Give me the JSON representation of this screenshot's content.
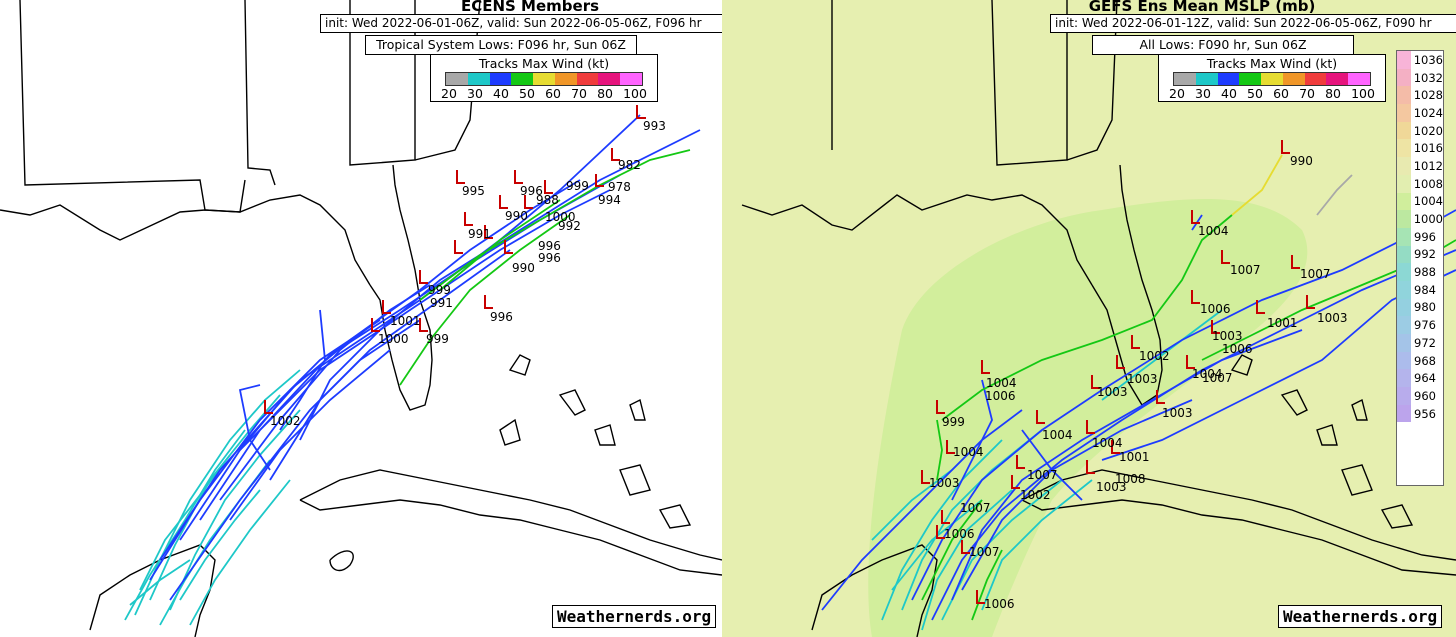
{
  "left": {
    "title": "ECENS Members",
    "init_line": "init: Wed 2022-06-01-06Z, valid: Sun 2022-06-05-06Z, F096 hr",
    "subtitle": "Tropical System Lows: F096 hr, Sun 06Z",
    "legend_title": "Tracks Max Wind (kt)",
    "legend_ticks": [
      "20",
      "30",
      "40",
      "50",
      "60",
      "70",
      "80",
      "100"
    ],
    "legend_colors": [
      "#a8a8a8",
      "#1ec8c8",
      "#1e3cff",
      "#14c814",
      "#e6dc32",
      "#f09628",
      "#f03c3c",
      "#e6147d",
      "#ff64ff"
    ],
    "pressure_labels": [
      "993",
      "982",
      "978",
      "995",
      "996",
      "999",
      "994",
      "988",
      "990",
      "1000",
      "992",
      "996",
      "991",
      "999",
      "990",
      "996",
      "991",
      "996",
      "1001",
      "1000",
      "999",
      "1002"
    ],
    "credit": "Weathernerds.org"
  },
  "right": {
    "title": "GEFS Ens Mean MSLP (mb)",
    "init_line": "init: Wed 2022-06-01-12Z, valid: Sun 2022-06-05-06Z, F090 hr",
    "subtitle": "All Lows: F090 hr, Sun 06Z",
    "legend_title": "Tracks Max Wind (kt)",
    "legend_ticks": [
      "20",
      "30",
      "40",
      "50",
      "60",
      "70",
      "80",
      "100"
    ],
    "legend_colors": [
      "#a8a8a8",
      "#1ec8c8",
      "#1e3cff",
      "#14c814",
      "#e6dc32",
      "#f09628",
      "#f03c3c",
      "#e6147d",
      "#ff64ff"
    ],
    "pressure_labels": [
      "990",
      "1004",
      "1007",
      "1007",
      "1006",
      "1001",
      "1003",
      "1003",
      "1006",
      "1002",
      "1004",
      "1007",
      "1003",
      "1004",
      "1006",
      "1003",
      "1003",
      "999",
      "1004",
      "1004",
      "1001",
      "1004",
      "1008",
      "1007",
      "1003",
      "1003",
      "1002",
      "1007",
      "1006",
      "1007",
      "1006"
    ],
    "mslp_scale": {
      "values": [
        "1036",
        "1032",
        "1028",
        "1024",
        "1020",
        "1016",
        "1012",
        "1008",
        "1004",
        "1000",
        "996",
        "992",
        "988",
        "984",
        "980",
        "976",
        "972",
        "968",
        "964",
        "960",
        "956"
      ],
      "colors": [
        "#f8b4d8",
        "#f4b0c4",
        "#f4bca8",
        "#f4c8a0",
        "#f0d898",
        "#eee4a4",
        "#e8eab0",
        "#e2eeb0",
        "#d0ee9c",
        "#bce8a0",
        "#a6e4b4",
        "#94dcc4",
        "#8cd8d4",
        "#90d4dc",
        "#94d0e0",
        "#9ccce4",
        "#a4c4e8",
        "#acbcec",
        "#b4b4ec",
        "#b8acec",
        "#bca4ec"
      ]
    },
    "credit": "Weathernerds.org"
  }
}
